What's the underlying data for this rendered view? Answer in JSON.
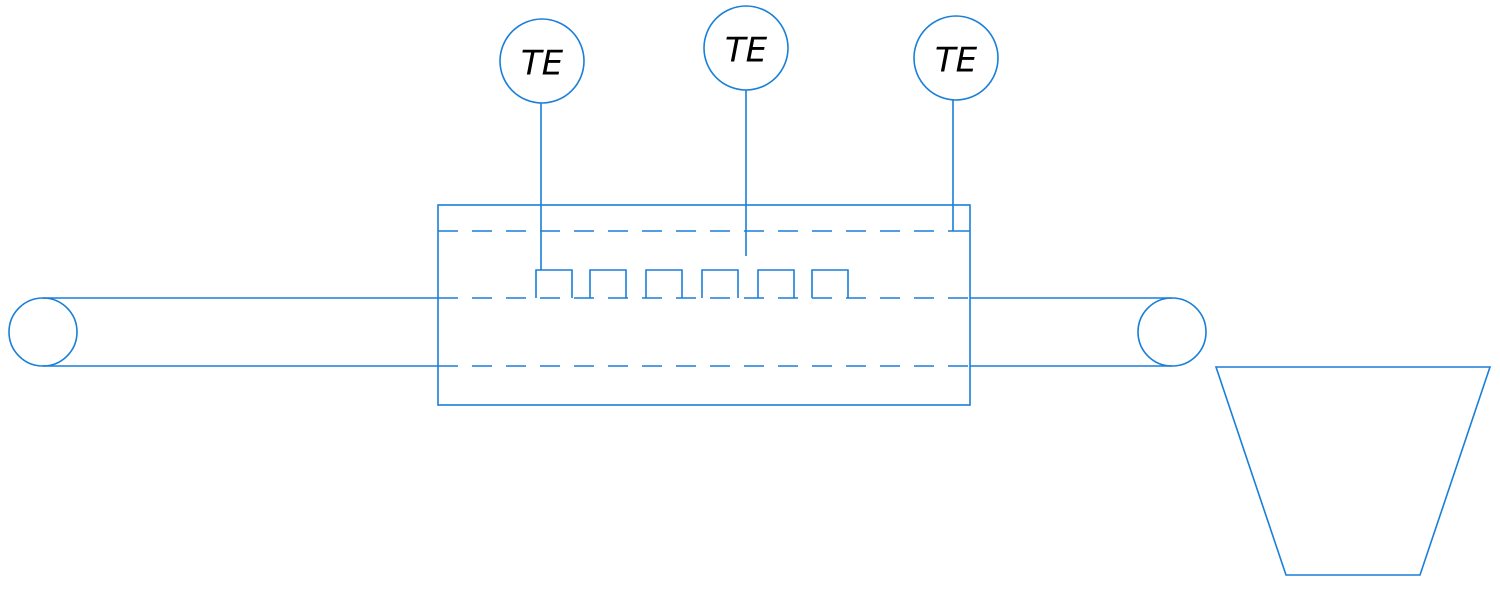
{
  "diagram": {
    "stroke_color": "#1a7fd8",
    "text_color": "#000000",
    "sensors": [
      {
        "label": "TE"
      },
      {
        "label": "TE"
      },
      {
        "label": "TE"
      }
    ]
  }
}
